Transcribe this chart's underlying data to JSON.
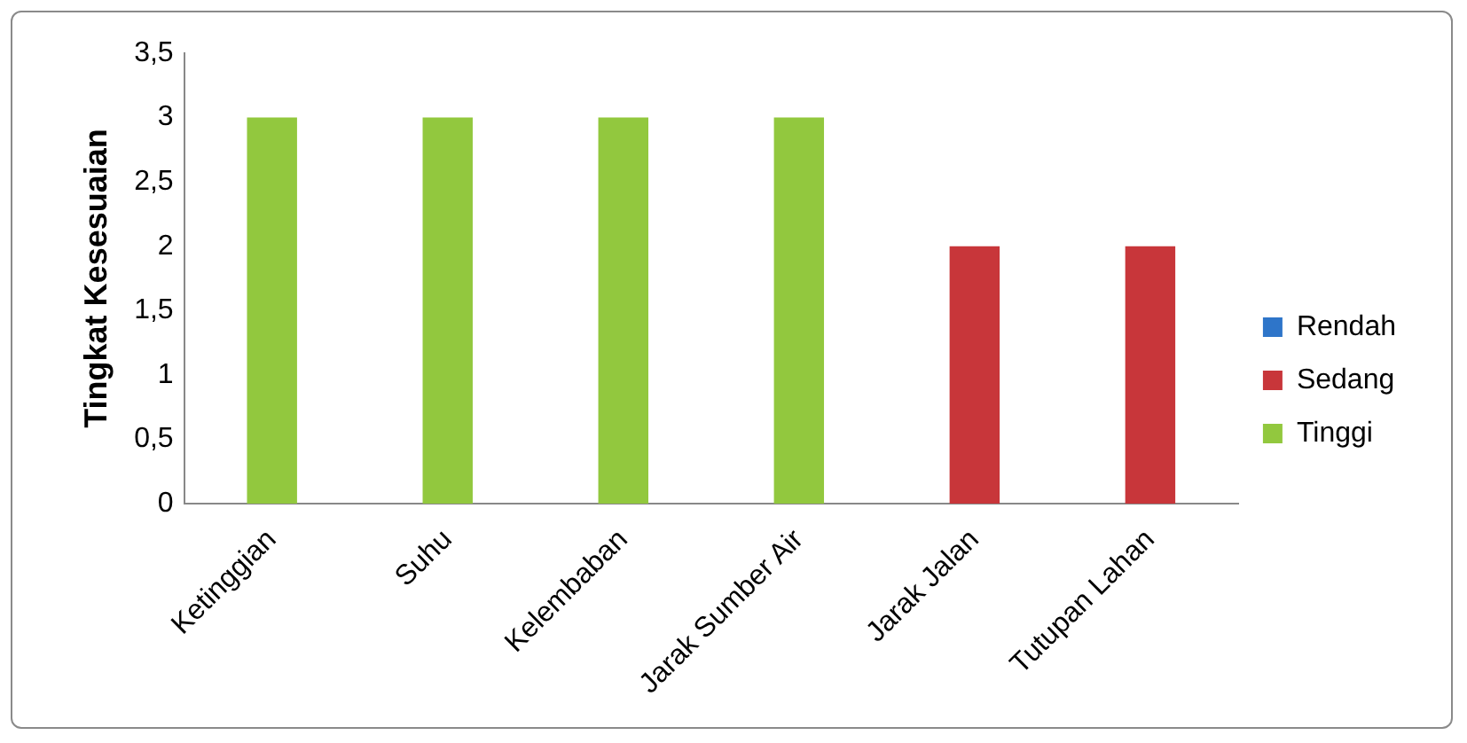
{
  "chart_data": {
    "type": "bar",
    "stacked": true,
    "ylabel": "Tingkat Kesesuaian",
    "categories": [
      "Ketinggian",
      "Suhu",
      "Kelembaban",
      "Jarak Sumber Air",
      "Jarak Jalan",
      "Tutupan Lahan"
    ],
    "series": [
      {
        "name": "Rendah",
        "color": "#2e75c9",
        "values": [
          null,
          null,
          null,
          null,
          null,
          null
        ]
      },
      {
        "name": "Sedang",
        "color": "#c8363a",
        "values": [
          null,
          null,
          null,
          null,
          2,
          2
        ]
      },
      {
        "name": "Tinggi",
        "color": "#92c83e",
        "values": [
          3,
          3,
          3,
          3,
          null,
          null
        ]
      }
    ],
    "ylim": [
      0,
      3.5
    ],
    "yticks": [
      0,
      {
        "value": 0.5,
        "label": "0,5"
      },
      1,
      {
        "value": 1.5,
        "label": "1,5"
      },
      2,
      {
        "value": 2.5,
        "label": "2,5"
      },
      3,
      {
        "value": 3.5,
        "label": "3,5"
      }
    ],
    "grid": false,
    "legend": "right"
  }
}
